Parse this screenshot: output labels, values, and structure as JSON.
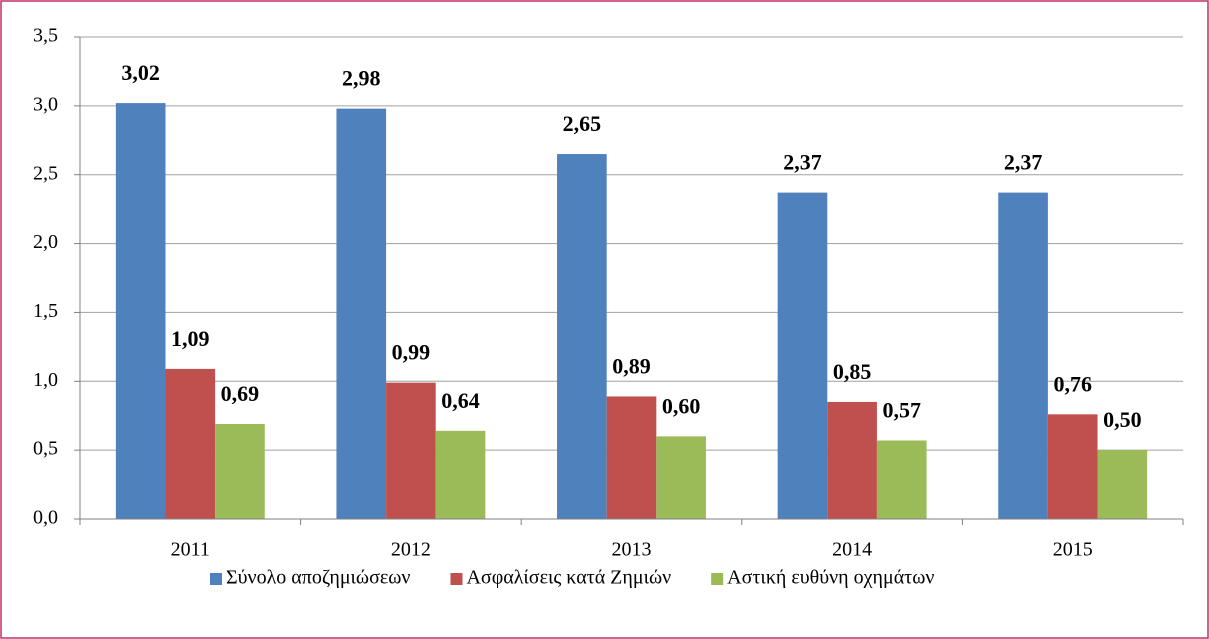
{
  "chart_data": {
    "type": "bar",
    "categories": [
      "2011",
      "2012",
      "2013",
      "2014",
      "2015"
    ],
    "series": [
      {
        "name": "Σύνολο αποζημιώσεων",
        "color": "#4f81bd",
        "values": [
          3.02,
          2.98,
          2.65,
          2.37,
          2.37
        ],
        "value_labels": [
          "3,02",
          "2,98",
          "2,65",
          "2,37",
          "2,37"
        ]
      },
      {
        "name": "Ασφαλίσεις κατά Ζημιών",
        "color": "#c0504d",
        "values": [
          1.09,
          0.99,
          0.89,
          0.85,
          0.76
        ],
        "value_labels": [
          "1,09",
          "0,99",
          "0,89",
          "0,85",
          "0,76"
        ]
      },
      {
        "name": "Αστική ευθύνη οχημάτων",
        "color": "#9bbb59",
        "values": [
          0.69,
          0.64,
          0.6,
          0.57,
          0.5
        ],
        "value_labels": [
          "0,69",
          "0,64",
          "0,60",
          "0,57",
          "0,50"
        ]
      }
    ],
    "ylim": [
      0,
      3.5
    ],
    "yticks": [
      {
        "value": 0,
        "label": "0,0"
      },
      {
        "value": 0.5,
        "label": "0,5"
      },
      {
        "value": 1,
        "label": "1,0"
      },
      {
        "value": 1.5,
        "label": "1,5"
      },
      {
        "value": 2,
        "label": "2,0"
      },
      {
        "value": 2.5,
        "label": "2,5"
      },
      {
        "value": 3,
        "label": "3,0"
      },
      {
        "value": 3.5,
        "label": "3,5"
      }
    ],
    "grid": true,
    "legend": "bottom"
  }
}
